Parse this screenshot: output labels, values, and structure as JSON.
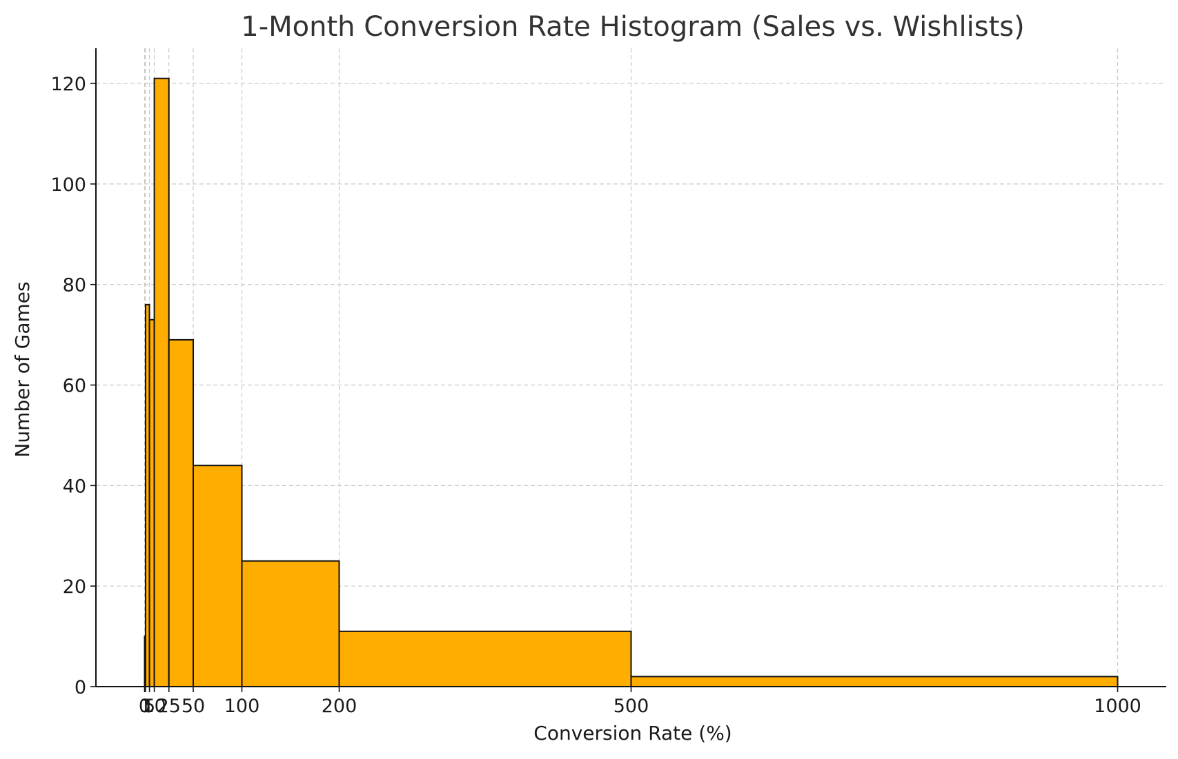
{
  "chart_data": {
    "type": "bar",
    "title": "1-Month Conversion Rate Histogram (Sales vs. Wishlists)",
    "xlabel": "Conversion Rate (%)",
    "ylabel": "Number of Games",
    "bin_edges": [
      0,
      1,
      5,
      10,
      25,
      50,
      100,
      200,
      500,
      1000
    ],
    "values": [
      10,
      76,
      73,
      121,
      69,
      44,
      25,
      11,
      2
    ],
    "xticks": [
      "0",
      "1",
      "5",
      "10",
      "25",
      "50",
      "100",
      "200",
      "500",
      "1000"
    ],
    "yticks": [
      "0",
      "20",
      "40",
      "60",
      "80",
      "100",
      "120"
    ],
    "xlim": [
      -50,
      1050
    ],
    "ylim": [
      0,
      127
    ],
    "grid": true,
    "bar_color": "#ffad00",
    "edge_color": "#111111"
  }
}
